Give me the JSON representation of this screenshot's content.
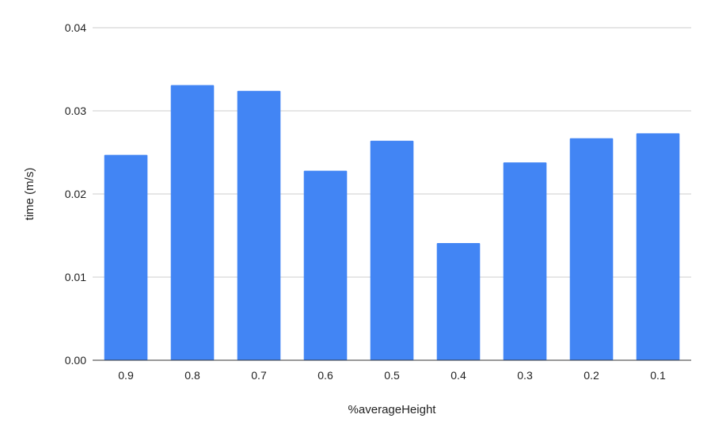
{
  "chart_data": {
    "type": "bar",
    "title": "",
    "xlabel": "%averageHeight",
    "ylabel": "time (m/s)",
    "categories": [
      "0.9",
      "0.8",
      "0.7",
      "0.6",
      "0.5",
      "0.4",
      "0.3",
      "0.2",
      "0.1"
    ],
    "series": [
      {
        "values": [
          0.0247,
          0.0331,
          0.0324,
          0.0228,
          0.0264,
          0.0141,
          0.0238,
          0.0267,
          0.0273
        ],
        "color": "#4285f4"
      }
    ],
    "ylim": [
      0,
      0.04
    ],
    "yticks": [
      "0.00",
      "0.01",
      "0.02",
      "0.03",
      "0.04"
    ],
    "grid": true,
    "legend": "none",
    "colors": {
      "bar": "#4285f4",
      "grid": "#cccccc",
      "axis": "#333333",
      "text": "#222222"
    }
  }
}
